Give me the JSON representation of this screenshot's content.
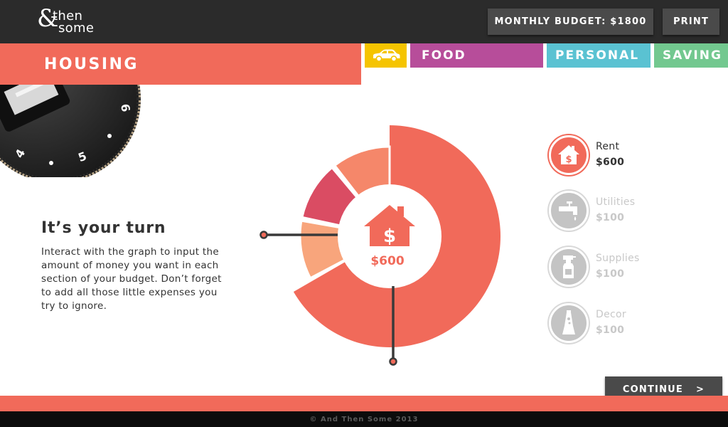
{
  "header": {
    "logo_amp": "&",
    "logo_line1": "then",
    "logo_line2": "some",
    "budget_label": "MONTHLY BUDGET: $1800",
    "print_label": "PRINT"
  },
  "tabs": {
    "active": "HOUSING",
    "car_icon": "car-icon",
    "food": "FOOD",
    "personal": "PERSONAL",
    "saving": "SAVING"
  },
  "intro": {
    "title": "It’s your turn",
    "body": "Interact with the graph to input the amount of money you want in each section of your budget. Don’t forget to add all those little expenses you try to ignore."
  },
  "chart_data": {
    "type": "pie",
    "center_label": "$600",
    "center_icon": "house-dollar-icon",
    "slices": [
      {
        "name": "Rent",
        "value": 600,
        "color": "#f16a5a"
      },
      {
        "name": "Utilities",
        "value": 100,
        "color": "#f8a57c"
      },
      {
        "name": "Supplies",
        "value": 100,
        "color": "#da4c63"
      },
      {
        "name": "Decor",
        "value": 100,
        "color": "#f5876a"
      }
    ]
  },
  "legend": [
    {
      "name": "Rent",
      "value": "$600",
      "icon": "house-dollar-icon",
      "active": true
    },
    {
      "name": "Utilities",
      "value": "$100",
      "icon": "faucet-icon",
      "active": false
    },
    {
      "name": "Supplies",
      "value": "$100",
      "icon": "spray-bottle-icon",
      "active": false
    },
    {
      "name": "Decor",
      "value": "$100",
      "icon": "lava-lamp-icon",
      "active": false
    }
  ],
  "continue_label": "CONTINUE",
  "continue_arrow": ">",
  "footer": "© And Then Some 2013",
  "dial_numbers": [
    "4",
    "5",
    "6"
  ],
  "colors": {
    "accent": "#f16a5a",
    "food": "#b74d9a",
    "personal": "#5ac2d2",
    "saving": "#72c88f",
    "car": "#f5c400",
    "dark": "#2b2b2b"
  }
}
